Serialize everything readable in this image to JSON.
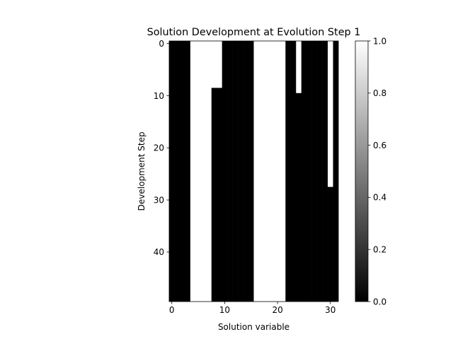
{
  "chart_data": {
    "type": "heatmap",
    "title": "Solution Development at Evolution Step 1",
    "xlabel": "Solution variable",
    "ylabel": "Development Step",
    "n_cols": 32,
    "n_rows": 50,
    "xticks": [
      0,
      10,
      20,
      30
    ],
    "yticks": [
      0,
      10,
      20,
      30,
      40
    ],
    "colorbar": {
      "min": 0.0,
      "max": 1.0,
      "ticks": [
        "0.0",
        "0.2",
        "0.4",
        "0.6",
        "0.8",
        "1.0"
      ],
      "colormap": "gray"
    },
    "columns": [
      {
        "x": 0,
        "values": "all rows 0"
      },
      {
        "x": 1,
        "values": "all rows 0"
      },
      {
        "x": 2,
        "values": "all rows 0"
      },
      {
        "x": 3,
        "values": "all rows 0"
      },
      {
        "x": 4,
        "values": "all rows 1"
      },
      {
        "x": 5,
        "values": "all rows 1"
      },
      {
        "x": 6,
        "values": "all rows 1"
      },
      {
        "x": 7,
        "values": "all rows 1"
      },
      {
        "x": 8,
        "values": "rows 0-8 = 1, rows 9-49 = 0"
      },
      {
        "x": 9,
        "values": "rows 0-8 = 1, rows 9-49 = 0"
      },
      {
        "x": 10,
        "values": "all rows 0"
      },
      {
        "x": 11,
        "values": "all rows 0"
      },
      {
        "x": 12,
        "values": "all rows 0"
      },
      {
        "x": 13,
        "values": "all rows 0"
      },
      {
        "x": 14,
        "values": "all rows 0"
      },
      {
        "x": 15,
        "values": "all rows 0"
      },
      {
        "x": 16,
        "values": "all rows 1"
      },
      {
        "x": 17,
        "values": "all rows 1"
      },
      {
        "x": 18,
        "values": "all rows 1"
      },
      {
        "x": 19,
        "values": "all rows 1"
      },
      {
        "x": 20,
        "values": "all rows 1"
      },
      {
        "x": 21,
        "values": "all rows 1"
      },
      {
        "x": 22,
        "values": "all rows 0"
      },
      {
        "x": 23,
        "values": "all rows 0"
      },
      {
        "x": 24,
        "values": "rows 0-9 = 1, rows 10-49 = 0"
      },
      {
        "x": 25,
        "values": "all rows 0"
      },
      {
        "x": 26,
        "values": "all rows 0"
      },
      {
        "x": 27,
        "values": "all rows 0"
      },
      {
        "x": 28,
        "values": "all rows 0"
      },
      {
        "x": 29,
        "values": "all rows 0"
      },
      {
        "x": 30,
        "values": "rows 0-27 = 1, rows 28-49 = 0"
      },
      {
        "x": 31,
        "values": "all rows 0"
      }
    ],
    "column_runs": [
      [
        [
          0,
          50,
          0
        ]
      ],
      [
        [
          0,
          50,
          0
        ]
      ],
      [
        [
          0,
          50,
          0
        ]
      ],
      [
        [
          0,
          50,
          0
        ]
      ],
      [
        [
          0,
          50,
          1
        ]
      ],
      [
        [
          0,
          50,
          1
        ]
      ],
      [
        [
          0,
          50,
          1
        ]
      ],
      [
        [
          0,
          50,
          1
        ]
      ],
      [
        [
          0,
          9,
          1
        ],
        [
          9,
          50,
          0
        ]
      ],
      [
        [
          0,
          9,
          1
        ],
        [
          9,
          50,
          0
        ]
      ],
      [
        [
          0,
          50,
          0
        ]
      ],
      [
        [
          0,
          50,
          0
        ]
      ],
      [
        [
          0,
          50,
          0
        ]
      ],
      [
        [
          0,
          50,
          0
        ]
      ],
      [
        [
          0,
          50,
          0
        ]
      ],
      [
        [
          0,
          50,
          0
        ]
      ],
      [
        [
          0,
          50,
          1
        ]
      ],
      [
        [
          0,
          50,
          1
        ]
      ],
      [
        [
          0,
          50,
          1
        ]
      ],
      [
        [
          0,
          50,
          1
        ]
      ],
      [
        [
          0,
          50,
          1
        ]
      ],
      [
        [
          0,
          50,
          1
        ]
      ],
      [
        [
          0,
          50,
          0
        ]
      ],
      [
        [
          0,
          50,
          0
        ]
      ],
      [
        [
          0,
          10,
          1
        ],
        [
          10,
          50,
          0
        ]
      ],
      [
        [
          0,
          50,
          0
        ]
      ],
      [
        [
          0,
          50,
          0
        ]
      ],
      [
        [
          0,
          50,
          0
        ]
      ],
      [
        [
          0,
          50,
          0
        ]
      ],
      [
        [
          0,
          50,
          0
        ]
      ],
      [
        [
          0,
          28,
          1
        ],
        [
          28,
          50,
          0
        ]
      ],
      [
        [
          0,
          50,
          0
        ]
      ]
    ]
  }
}
